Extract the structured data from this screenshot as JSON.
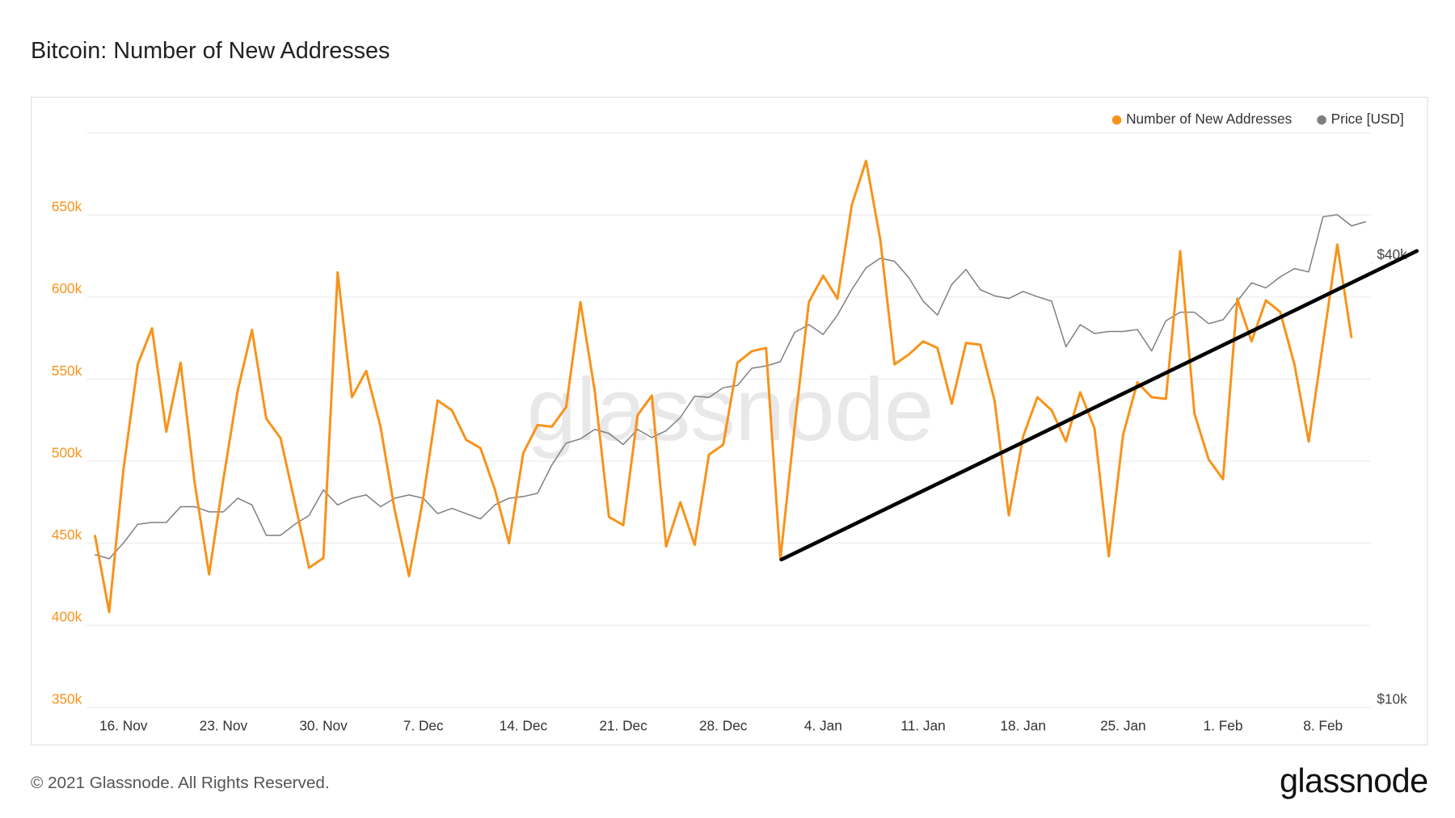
{
  "chart_data": {
    "type": "line",
    "title": "Bitcoin: Number of New Addresses",
    "categories": [
      null,
      null,
      "16. Nov",
      null,
      null,
      null,
      null,
      null,
      null,
      "23. Nov",
      null,
      null,
      null,
      null,
      null,
      null,
      "30. Nov",
      null,
      null,
      null,
      null,
      null,
      null,
      "7. Dec",
      null,
      null,
      null,
      null,
      null,
      null,
      "14. Dec",
      null,
      null,
      null,
      null,
      null,
      null,
      "21. Dec",
      null,
      null,
      null,
      null,
      null,
      null,
      "28. Dec",
      null,
      null,
      null,
      null,
      null,
      null,
      "4. Jan",
      null,
      null,
      null,
      null,
      null,
      null,
      "11. Jan",
      null,
      null,
      null,
      null,
      null,
      null,
      "18. Jan",
      null,
      null,
      null,
      null,
      null,
      null,
      "25. Jan",
      null,
      null,
      null,
      null,
      null,
      null,
      "1. Feb",
      null,
      null,
      null,
      null,
      null,
      null,
      "8. Feb",
      null,
      null,
      null
    ],
    "series": [
      {
        "name": "Number of New Addresses",
        "color": "#f7931a",
        "axis": "y",
        "values": [
          455000,
          408000,
          495000,
          559000,
          581000,
          518000,
          560000,
          486000,
          431000,
          489000,
          543000,
          580000,
          526000,
          514000,
          475000,
          435000,
          441000,
          615000,
          539000,
          555000,
          521000,
          470000,
          430000,
          478000,
          537000,
          531000,
          513000,
          508000,
          483000,
          450000,
          505000,
          522000,
          521000,
          533000,
          597000,
          543000,
          466000,
          461000,
          528000,
          540000,
          448000,
          475000,
          449000,
          504000,
          510000,
          560000,
          567000,
          569000,
          440000,
          521000,
          597000,
          613000,
          599000,
          656000,
          683000,
          635000,
          559000,
          565000,
          573000,
          569000,
          535000,
          572000,
          571000,
          537000,
          467000,
          515000,
          539000,
          531000,
          512000,
          542000,
          520000,
          442000,
          516000,
          548000,
          539000,
          538000,
          628000,
          529000,
          501000,
          489000,
          599000,
          573000,
          598000,
          591000,
          559000,
          512000,
          572000,
          632000,
          575000,
          null
        ]
      },
      {
        "name": "Price [USD]",
        "color": "#7f7f7f",
        "axis": "y2",
        "values": [
          16100,
          15900,
          16700,
          17700,
          17800,
          17800,
          18700,
          18700,
          18400,
          18400,
          19200,
          18800,
          17100,
          17100,
          17700,
          18200,
          19700,
          18800,
          19200,
          19400,
          18700,
          19200,
          19400,
          19200,
          18300,
          18600,
          18300,
          18000,
          18800,
          19200,
          19300,
          19500,
          21300,
          22800,
          23100,
          23800,
          23500,
          22700,
          23800,
          23200,
          23700,
          24700,
          26400,
          26300,
          27100,
          27300,
          28800,
          29000,
          29400,
          32200,
          33000,
          32000,
          34000,
          36800,
          39400,
          40600,
          40200,
          38200,
          35500,
          34000,
          37400,
          39200,
          36800,
          36100,
          35800,
          36600,
          36000,
          35500,
          30800,
          33000,
          32100,
          32300,
          32300,
          32500,
          30400,
          33400,
          34300,
          34300,
          33100,
          33500,
          35500,
          37600,
          37000,
          38300,
          39300,
          38900,
          46200,
          46500,
          44900,
          45500
        ]
      }
    ],
    "ylim": [
      350000,
      700000
    ],
    "yticks": [
      {
        "value": 350000,
        "label": "350k"
      },
      {
        "value": 400000,
        "label": "400k"
      },
      {
        "value": 450000,
        "label": "450k"
      },
      {
        "value": 500000,
        "label": "500k"
      },
      {
        "value": 550000,
        "label": "550k"
      },
      {
        "value": 600000,
        "label": "600k"
      },
      {
        "value": 650000,
        "label": "650k"
      }
    ],
    "y2lim": [
      10000,
      60000
    ],
    "y2ticks": [
      {
        "value": 10000,
        "label": "$10k"
      },
      {
        "value": 40000,
        "label": "$40k"
      }
    ],
    "y2_log": true,
    "grid": true,
    "legend": "top-right"
  },
  "watermark": "glassnode",
  "copyright": "© 2021 Glassnode. All Rights Reserved.",
  "logo": "glassnode"
}
